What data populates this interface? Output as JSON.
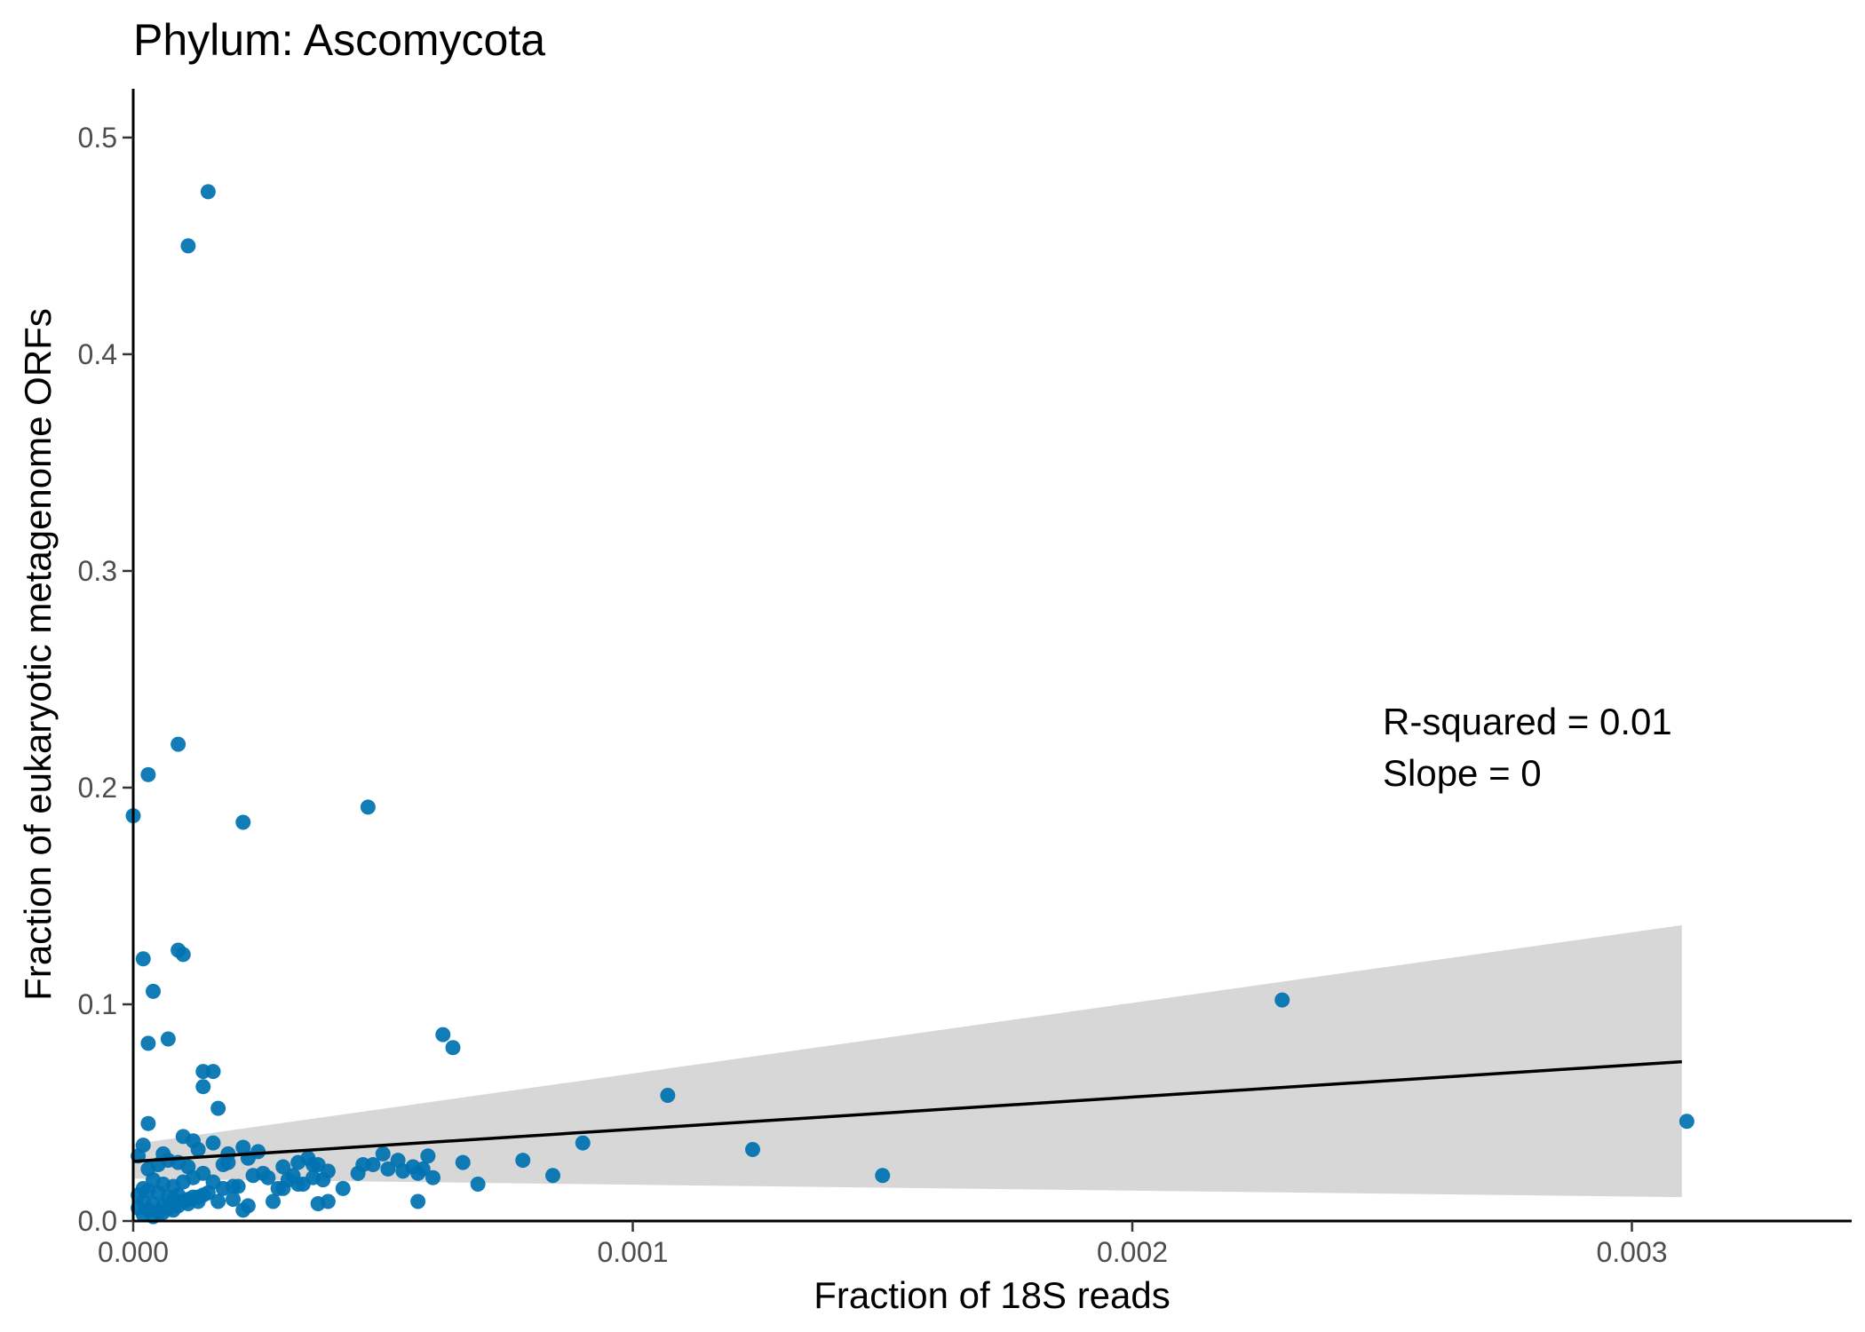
{
  "chart_data": {
    "type": "scatter",
    "title": "Phylum:  Ascomycota",
    "xlabel": "Fraction of 18S reads",
    "ylabel": "Fraction of eukaryotic metagenome ORFs",
    "xlim": [
      0,
      0.00344
    ],
    "ylim": [
      0,
      0.5225
    ],
    "x_ticks": [
      0,
      0.001,
      0.002,
      0.003
    ],
    "x_tick_labels": [
      "0.000",
      "0.001",
      "0.002",
      "0.003"
    ],
    "y_ticks": [
      0,
      0.1,
      0.2,
      0.3,
      0.4,
      0.5
    ],
    "y_tick_labels": [
      "0.0",
      "0.1",
      "0.2",
      "0.3",
      "0.4",
      "0.5"
    ],
    "grid": false,
    "annotations": [
      "R-squared =  0.01",
      "Slope =  0"
    ],
    "colors": {
      "points": "#0072b2",
      "fit_line": "#000000",
      "confidence_band": "#d3d3d3"
    },
    "fit": {
      "x": [
        0,
        0.0031
      ],
      "y": [
        0.0275,
        0.0735
      ],
      "ci_lower": [
        0.0195,
        0.011
      ],
      "ci_upper": [
        0.0355,
        0.1365
      ]
    },
    "points": {
      "x": [
        0.0,
        3e-05,
        0.00011,
        0.00015,
        9e-05,
        2e-05,
        0.00022,
        0.00047,
        2e-05,
        9e-05,
        0.0001,
        4e-05,
        3e-05,
        7e-05,
        0.00062,
        0.00064,
        0.00014,
        0.00016,
        0.00014,
        0.00017,
        3e-05,
        0.0001,
        0.00012,
        0.00016,
        0.00022,
        0.00025,
        1e-05,
        6e-05,
        0.00013,
        0.00019,
        0.00023,
        0.0003,
        0.00033,
        0.00035,
        0.00037,
        0.00039,
        0.00046,
        0.0005,
        0.00051,
        0.00053,
        0.00056,
        0.00058,
        0.00059,
        0.00066,
        0.00078,
        0.0009,
        0.00107,
        0.00124,
        0.0015,
        0.0023,
        0.00311,
        0.00042,
        0.00045,
        0.00048,
        0.00054,
        0.00057,
        0.0006,
        0.00069,
        0.00084,
        0.0003,
        0.00032,
        0.00034,
        0.00036,
        0.00038,
        0.0002,
        0.00021,
        0.00024,
        0.00027,
        0.00018,
        0.00016,
        0.00014,
        0.00012,
        0.0001,
        8e-05,
        6e-05,
        4e-05,
        2e-05,
        1e-05,
        3e-05,
        5e-05,
        7e-05,
        9e-05,
        0.00011,
        0.00013,
        0.00015,
        2e-05,
        4e-05,
        6e-05,
        8e-05,
        0.0001,
        0.00012,
        0.00014,
        1e-05,
        3e-05,
        5e-05,
        7e-05,
        9e-05,
        0.00011,
        0.00013,
        2e-05,
        4e-05,
        6e-05,
        8e-05,
        3e-05,
        5e-05,
        7e-05,
        9e-05,
        0.00011,
        0.00022,
        0.00023,
        0.00028,
        0.00029,
        0.00037,
        0.00039,
        0.00057,
        0.00017,
        0.0002,
        0.00019,
        0.00018,
        0.00026,
        0.00031,
        0.00033,
        0.00036
      ],
      "y": [
        0.187,
        0.206,
        0.45,
        0.475,
        0.22,
        0.035,
        0.184,
        0.191,
        0.121,
        0.125,
        0.123,
        0.106,
        0.082,
        0.084,
        0.086,
        0.08,
        0.069,
        0.069,
        0.062,
        0.052,
        0.045,
        0.039,
        0.037,
        0.036,
        0.034,
        0.032,
        0.03,
        0.031,
        0.033,
        0.031,
        0.029,
        0.025,
        0.027,
        0.029,
        0.026,
        0.023,
        0.026,
        0.031,
        0.024,
        0.028,
        0.025,
        0.024,
        0.03,
        0.027,
        0.028,
        0.036,
        0.058,
        0.033,
        0.021,
        0.102,
        0.046,
        0.015,
        0.022,
        0.026,
        0.023,
        0.022,
        0.02,
        0.017,
        0.021,
        0.015,
        0.021,
        0.017,
        0.02,
        0.019,
        0.016,
        0.016,
        0.021,
        0.02,
        0.015,
        0.018,
        0.022,
        0.02,
        0.018,
        0.016,
        0.017,
        0.019,
        0.015,
        0.012,
        0.014,
        0.013,
        0.011,
        0.012,
        0.01,
        0.011,
        0.013,
        0.009,
        0.008,
        0.007,
        0.01,
        0.009,
        0.011,
        0.012,
        0.006,
        0.005,
        0.004,
        0.006,
        0.007,
        0.008,
        0.009,
        0.003,
        0.002,
        0.004,
        0.005,
        0.024,
        0.026,
        0.028,
        0.027,
        0.025,
        0.005,
        0.007,
        0.009,
        0.015,
        0.008,
        0.009,
        0.009,
        0.009,
        0.01,
        0.027,
        0.026,
        0.022,
        0.019,
        0.017,
        0.026
      ]
    }
  }
}
